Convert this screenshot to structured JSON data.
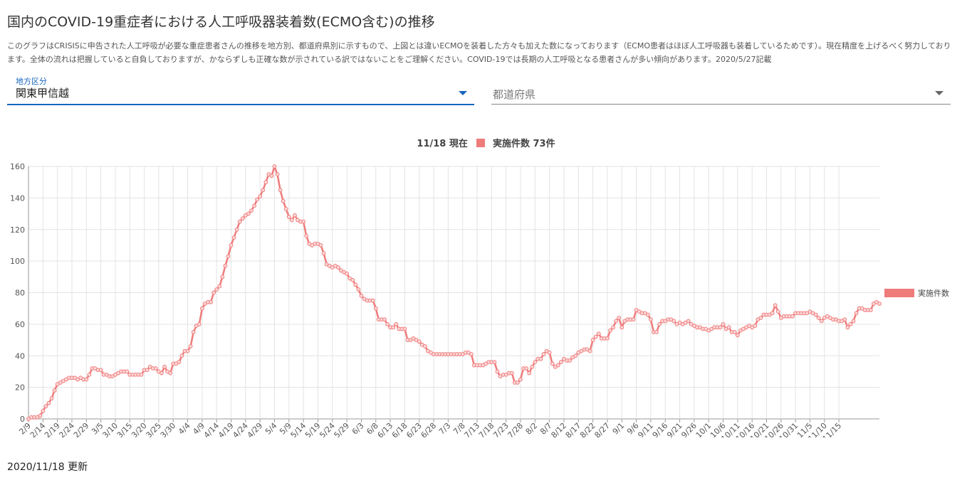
{
  "title": "国内のCOVID-19重症者における人工呼吸器装着数(ECMO含む)の推移",
  "description": "このグラフはCRISISに申告された人工呼吸が必要な重症患者さんの推移を地方別、都道府県別に示すもので、上図とは違いECMOを装着した方々も加えた数になっております（ECMO患者はほぼ人工呼吸器も装着しているためです）。現在精度を上げるべく努力しております。全体の流れは把握していると自負しておりますが、かならずしも正確な数が示されている訳ではないことをご理解ください。COVID-19では長期の人工呼吸となる患者さんが多い傾向があります。2020/5/27記載",
  "filters": {
    "region_label": "地方区分",
    "region_value": "関東甲信越",
    "prefecture_placeholder": "都道府県"
  },
  "header": {
    "current_date": "11/18 現在",
    "current_text": "実施件数 73件"
  },
  "updated": "2020/11/18 更新",
  "colors": {
    "series": "#f07b7b",
    "accent": "#1565c0"
  },
  "chart_data": {
    "type": "line",
    "title": "",
    "xlabel": "",
    "ylabel": "",
    "ylim": [
      0,
      160
    ],
    "y_ticks": [
      0,
      20,
      40,
      60,
      80,
      100,
      120,
      140,
      160
    ],
    "grid": true,
    "legend_position": "right",
    "start_date": "2020-02-09",
    "x_tick_labels": [
      "2/9",
      "2/14",
      "2/19",
      "2/24",
      "2/29",
      "3/5",
      "3/10",
      "3/15",
      "3/20",
      "3/25",
      "3/30",
      "4/4",
      "4/9",
      "4/14",
      "4/19",
      "4/24",
      "4/29",
      "5/4",
      "5/9",
      "5/14",
      "5/19",
      "5/24",
      "5/29",
      "6/3",
      "6/8",
      "6/13",
      "6/18",
      "6/23",
      "6/28",
      "7/3",
      "7/8",
      "7/13",
      "7/18",
      "7/23",
      "7/28",
      "8/2",
      "8/7",
      "8/12",
      "8/17",
      "8/22",
      "8/27",
      "9/1",
      "9/6",
      "9/11",
      "9/16",
      "9/21",
      "9/26",
      "10/1",
      "10/6",
      "10/11",
      "10/16",
      "10/21",
      "10/26",
      "10/31",
      "11/5",
      "11/10",
      "11/15"
    ],
    "series": [
      {
        "name": "実施件数",
        "values": [
          0,
          1,
          1,
          1,
          2,
          5,
          8,
          10,
          13,
          18,
          22,
          23,
          24,
          25,
          26,
          26,
          26,
          25,
          26,
          25,
          25,
          28,
          32,
          32,
          31,
          31,
          28,
          28,
          27,
          27,
          28,
          29,
          30,
          30,
          30,
          28,
          28,
          28,
          28,
          28,
          31,
          31,
          33,
          32,
          32,
          30,
          29,
          33,
          30,
          29,
          35,
          35,
          36,
          40,
          43,
          43,
          46,
          55,
          59,
          60,
          70,
          73,
          74,
          74,
          80,
          82,
          84,
          90,
          97,
          103,
          110,
          115,
          120,
          125,
          127,
          129,
          130,
          132,
          135,
          139,
          141,
          145,
          150,
          155,
          154,
          160,
          155,
          145,
          138,
          133,
          128,
          126,
          129,
          126,
          125,
          125,
          116,
          111,
          110,
          111,
          111,
          110,
          105,
          98,
          97,
          96,
          97,
          96,
          94,
          93,
          92,
          89,
          88,
          85,
          82,
          78,
          76,
          75,
          75,
          75,
          70,
          63,
          63,
          63,
          60,
          58,
          58,
          60,
          57,
          57,
          57,
          50,
          50,
          51,
          50,
          49,
          47,
          46,
          43,
          42,
          41,
          41,
          41,
          41,
          41,
          41,
          41,
          41,
          41,
          41,
          41,
          42,
          42,
          41,
          34,
          34,
          34,
          34,
          35,
          36,
          36,
          36,
          30,
          27,
          28,
          28,
          29,
          29,
          23,
          23,
          25,
          32,
          32,
          29,
          33,
          36,
          38,
          38,
          41,
          43,
          42,
          35,
          33,
          34,
          36,
          38,
          37,
          37,
          39,
          40,
          42,
          43,
          44,
          44,
          43,
          50,
          52,
          54,
          51,
          51,
          51,
          56,
          58,
          62,
          64,
          58,
          62,
          63,
          63,
          63,
          69,
          68,
          67,
          67,
          66,
          63,
          55,
          55,
          60,
          62,
          62,
          63,
          63,
          62,
          60,
          61,
          60,
          61,
          62,
          60,
          59,
          58,
          58,
          57,
          57,
          56,
          57,
          58,
          58,
          58,
          60,
          57,
          58,
          55,
          55,
          53,
          56,
          57,
          58,
          59,
          58,
          59,
          63,
          64,
          66,
          66,
          66,
          67,
          72,
          68,
          64,
          65,
          65,
          65,
          65,
          67,
          67,
          67,
          67,
          67,
          68,
          67,
          66,
          64,
          62,
          64,
          65,
          64,
          63,
          63,
          62,
          62,
          63,
          58,
          60,
          62,
          67,
          70,
          70,
          69,
          69,
          69,
          73,
          74,
          73
        ]
      }
    ]
  }
}
